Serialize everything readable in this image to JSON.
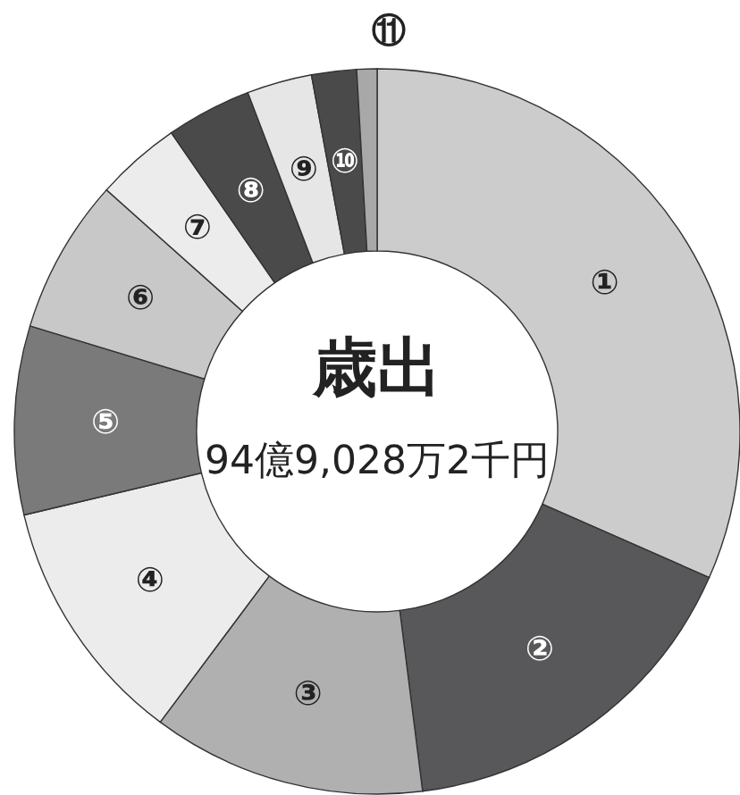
{
  "chart_data": {
    "type": "donut",
    "title": "歳出",
    "subtitle": "94億9,028万2千円",
    "categories": [
      "①",
      "②",
      "③",
      "④",
      "⑤",
      "⑥",
      "⑦",
      "⑧",
      "⑨",
      "⑩",
      "⑪"
    ],
    "values": [
      31.6,
      16.4,
      12.2,
      11.1,
      8.4,
      6.9,
      3.8,
      3.8,
      2.9,
      2.0,
      0.9
    ],
    "colors": [
      "#cccccc",
      "#58585a",
      "#b0b0b0",
      "#ececec",
      "#7a7a7a",
      "#c8c8c8",
      "#ececec",
      "#4a4a4a",
      "#e6e6e6",
      "#4a4a4a",
      "#a8a8a8"
    ]
  }
}
